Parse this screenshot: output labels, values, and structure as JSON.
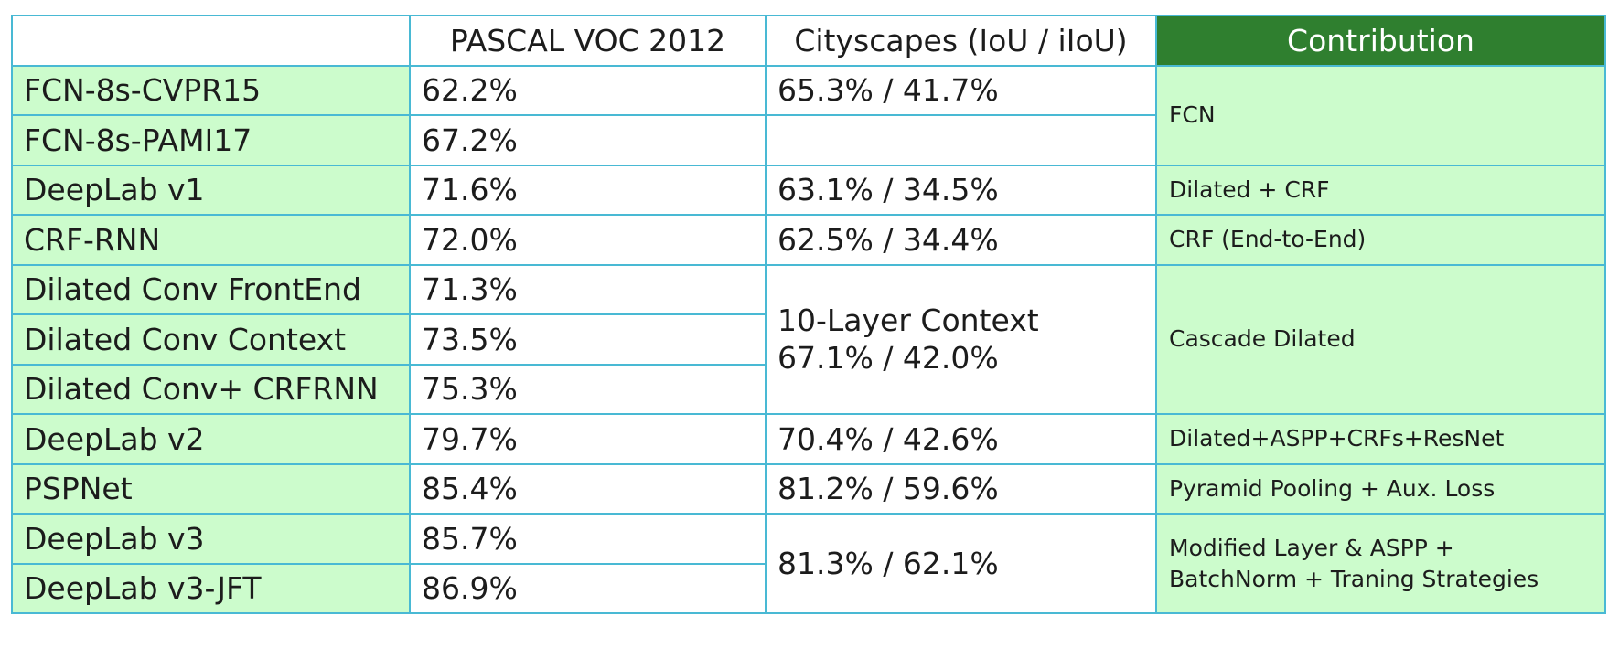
{
  "header": {
    "blank": "",
    "pascal": "PASCAL VOC 2012",
    "cityscapes": "Cityscapes (IoU / iIoU)",
    "contribution": "Contribution"
  },
  "rows": [
    {
      "method": "FCN-8s-CVPR15",
      "pascal": "62.2%"
    },
    {
      "method": "FCN-8s-PAMI17",
      "pascal": "67.2%"
    },
    {
      "method": "DeepLab v1",
      "pascal": "71.6%"
    },
    {
      "method": "CRF-RNN",
      "pascal": "72.0%"
    },
    {
      "method": "Dilated Conv FrontEnd",
      "pascal": "71.3%"
    },
    {
      "method": "Dilated Conv Context",
      "pascal": "73.5%"
    },
    {
      "method": "Dilated Conv+ CRFRNN",
      "pascal": "75.3%"
    },
    {
      "method": "DeepLab v2",
      "pascal": "79.7%"
    },
    {
      "method": "PSPNet",
      "pascal": "85.4%"
    },
    {
      "method": "DeepLab v3",
      "pascal": "85.7%"
    },
    {
      "method": "DeepLab v3-JFT",
      "pascal": "86.9%"
    }
  ],
  "cityscapes": [
    {
      "line1": "65.3% / 41.7%"
    },
    {
      "line1": ""
    },
    {
      "line1": "63.1% / 34.5%"
    },
    {
      "line1": "62.5% / 34.4%"
    },
    {
      "line1": "10-Layer Context",
      "line2": "67.1% / 42.0%"
    },
    {
      "line1": "70.4% / 42.6%"
    },
    {
      "line1": "81.2% / 59.6%"
    },
    {
      "line1": "81.3% / 62.1%"
    }
  ],
  "contributions": [
    {
      "line1": "FCN"
    },
    {
      "line1": "Dilated + CRF"
    },
    {
      "line1": "CRF (End-to-End)"
    },
    {
      "line1": "Cascade Dilated"
    },
    {
      "line1": "Dilated+ASPP+CRFs+ResNet"
    },
    {
      "line1": "Pyramid Pooling + Aux. Loss"
    },
    {
      "line1": "Modified Layer & ASPP +",
      "line2": "BatchNorm + Traning Strategies"
    }
  ],
  "colors": {
    "border": "#49b9d4",
    "method_bg": "#ccfccc",
    "contribution_header_bg": "#2f7f2f"
  }
}
